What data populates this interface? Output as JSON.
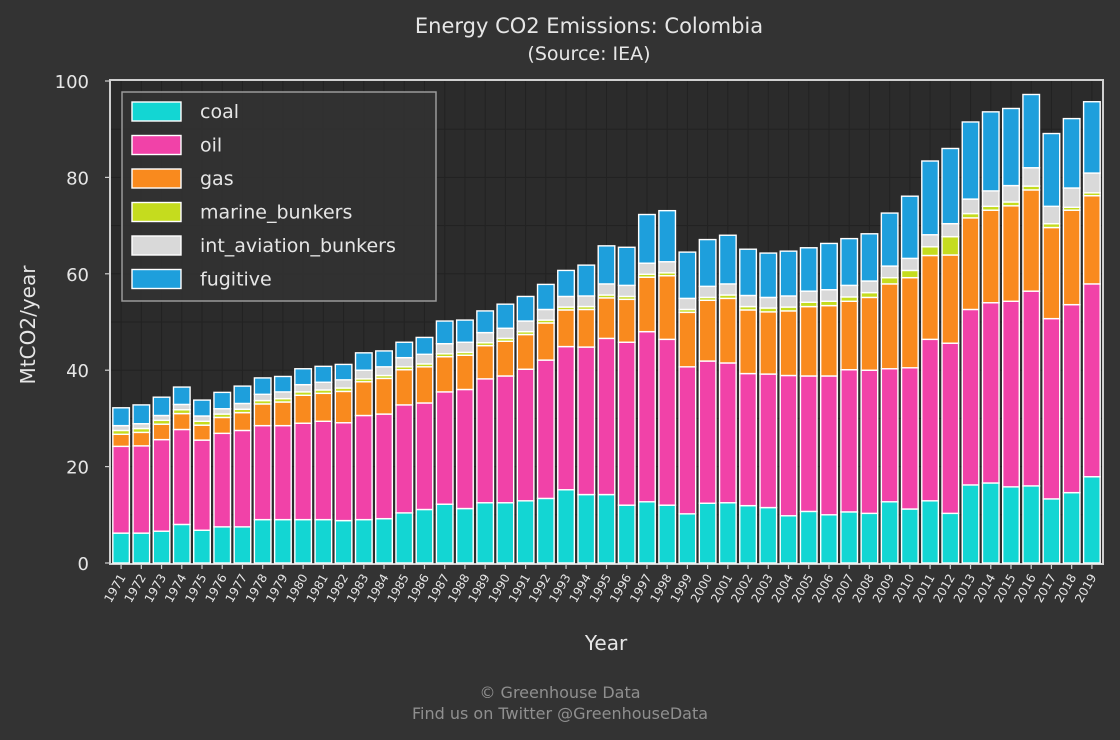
{
  "chart_data": {
    "type": "bar",
    "stacked": true,
    "title": "Energy CO2 Emissions: Colombia",
    "subtitle": "(Source: IEA)",
    "xlabel": "Year",
    "ylabel": "MtCO2/year",
    "ylim": [
      0,
      100
    ],
    "yticks": [
      0,
      20,
      40,
      60,
      80,
      100
    ],
    "grid": true,
    "legend_position": "top-left",
    "categories": [
      "1971",
      "1972",
      "1973",
      "1974",
      "1975",
      "1976",
      "1977",
      "1978",
      "1979",
      "1980",
      "1981",
      "1982",
      "1983",
      "1984",
      "1985",
      "1986",
      "1987",
      "1988",
      "1989",
      "1990",
      "1991",
      "1992",
      "1993",
      "1994",
      "1995",
      "1996",
      "1997",
      "1998",
      "1999",
      "2000",
      "2001",
      "2002",
      "2003",
      "2004",
      "2005",
      "2006",
      "2007",
      "2008",
      "2009",
      "2010",
      "2011",
      "2012",
      "2013",
      "2014",
      "2015",
      "2016",
      "2017",
      "2018",
      "2019"
    ],
    "series": [
      {
        "name": "coal",
        "color": "#13d6d3",
        "values": [
          6.2,
          6.2,
          6.6,
          8.0,
          6.8,
          7.5,
          7.5,
          9.0,
          9.0,
          9.0,
          9.0,
          8.8,
          9.0,
          9.2,
          10.4,
          11.1,
          12.2,
          11.3,
          12.5,
          12.5,
          12.9,
          13.4,
          15.2,
          14.2,
          14.2,
          12.0,
          12.7,
          12.0,
          10.2,
          12.4,
          12.5,
          11.9,
          11.5,
          9.8,
          10.7,
          10.0,
          10.6,
          10.3,
          12.7,
          11.2,
          12.9,
          10.3,
          16.2,
          16.6,
          15.8,
          16.0,
          13.3,
          14.6,
          17.9
        ]
      },
      {
        "name": "oil",
        "color": "#f142a8",
        "values": [
          18.0,
          18.1,
          19.0,
          19.7,
          18.7,
          19.4,
          20.0,
          19.5,
          19.5,
          20.0,
          20.4,
          20.3,
          21.6,
          21.7,
          22.4,
          22.1,
          23.3,
          24.7,
          25.7,
          26.3,
          27.3,
          28.7,
          29.7,
          30.6,
          32.4,
          33.8,
          35.3,
          34.4,
          30.5,
          29.5,
          29.0,
          27.4,
          27.7,
          29.1,
          28.1,
          28.8,
          29.5,
          29.7,
          27.6,
          29.3,
          33.5,
          35.3,
          36.4,
          37.4,
          38.5,
          40.4,
          37.4,
          39.0,
          40.0
        ]
      },
      {
        "name": "gas",
        "color": "#f98a1e",
        "values": [
          2.5,
          2.8,
          3.2,
          3.3,
          3.1,
          3.3,
          3.7,
          4.5,
          4.9,
          5.8,
          5.8,
          6.5,
          7.0,
          7.4,
          7.3,
          7.5,
          7.3,
          7.1,
          6.9,
          7.2,
          7.2,
          7.7,
          7.6,
          7.8,
          8.4,
          8.9,
          11.3,
          13.2,
          11.3,
          12.6,
          13.4,
          13.2,
          12.9,
          13.4,
          14.4,
          14.6,
          14.2,
          15.1,
          17.6,
          18.7,
          17.4,
          18.3,
          19.0,
          19.2,
          19.8,
          21.0,
          18.9,
          19.6,
          18.3
        ]
      },
      {
        "name": "marine_bunkers",
        "color": "#c5dc1e",
        "values": [
          0.8,
          0.8,
          0.8,
          0.8,
          0.8,
          0.7,
          0.7,
          0.7,
          0.7,
          0.7,
          0.7,
          0.7,
          0.6,
          0.6,
          0.6,
          0.6,
          0.6,
          0.6,
          0.6,
          0.6,
          0.6,
          0.6,
          0.6,
          0.6,
          0.6,
          0.6,
          0.6,
          0.6,
          0.6,
          0.6,
          0.7,
          0.7,
          0.8,
          0.8,
          0.9,
          0.9,
          0.9,
          1.0,
          1.3,
          1.5,
          1.8,
          3.8,
          0.9,
          0.8,
          0.8,
          0.8,
          0.8,
          0.6,
          0.6
        ]
      },
      {
        "name": "int_aviation_bunkers",
        "color": "#d9d9d9",
        "values": [
          1.0,
          1.0,
          1.0,
          1.1,
          1.1,
          1.1,
          1.2,
          1.3,
          1.4,
          1.5,
          1.6,
          1.7,
          1.8,
          1.8,
          1.9,
          2.0,
          2.1,
          2.1,
          2.1,
          2.1,
          2.2,
          2.2,
          2.2,
          2.2,
          2.3,
          2.3,
          2.3,
          2.3,
          2.3,
          2.3,
          2.3,
          2.3,
          2.2,
          2.3,
          2.3,
          2.4,
          2.4,
          2.4,
          2.4,
          2.5,
          2.5,
          2.7,
          3.0,
          3.2,
          3.4,
          3.8,
          3.6,
          4.0,
          4.1
        ]
      },
      {
        "name": "fugitive",
        "color": "#1e9fdc",
        "values": [
          3.7,
          3.9,
          3.8,
          3.6,
          3.3,
          3.4,
          3.6,
          3.4,
          3.2,
          3.3,
          3.3,
          3.2,
          3.6,
          3.3,
          3.2,
          3.5,
          4.7,
          4.6,
          4.5,
          5.0,
          5.1,
          5.2,
          5.4,
          6.4,
          7.9,
          7.9,
          10.1,
          10.6,
          9.6,
          9.7,
          10.1,
          9.6,
          9.2,
          9.3,
          9.0,
          9.6,
          9.7,
          9.8,
          11.0,
          12.9,
          15.3,
          15.6,
          16.0,
          16.4,
          16.0,
          15.2,
          15.1,
          14.4,
          14.8
        ]
      }
    ]
  },
  "footer": {
    "line1": "© Greenhouse Data",
    "line2": "Find us on Twitter @GreenhouseData"
  }
}
